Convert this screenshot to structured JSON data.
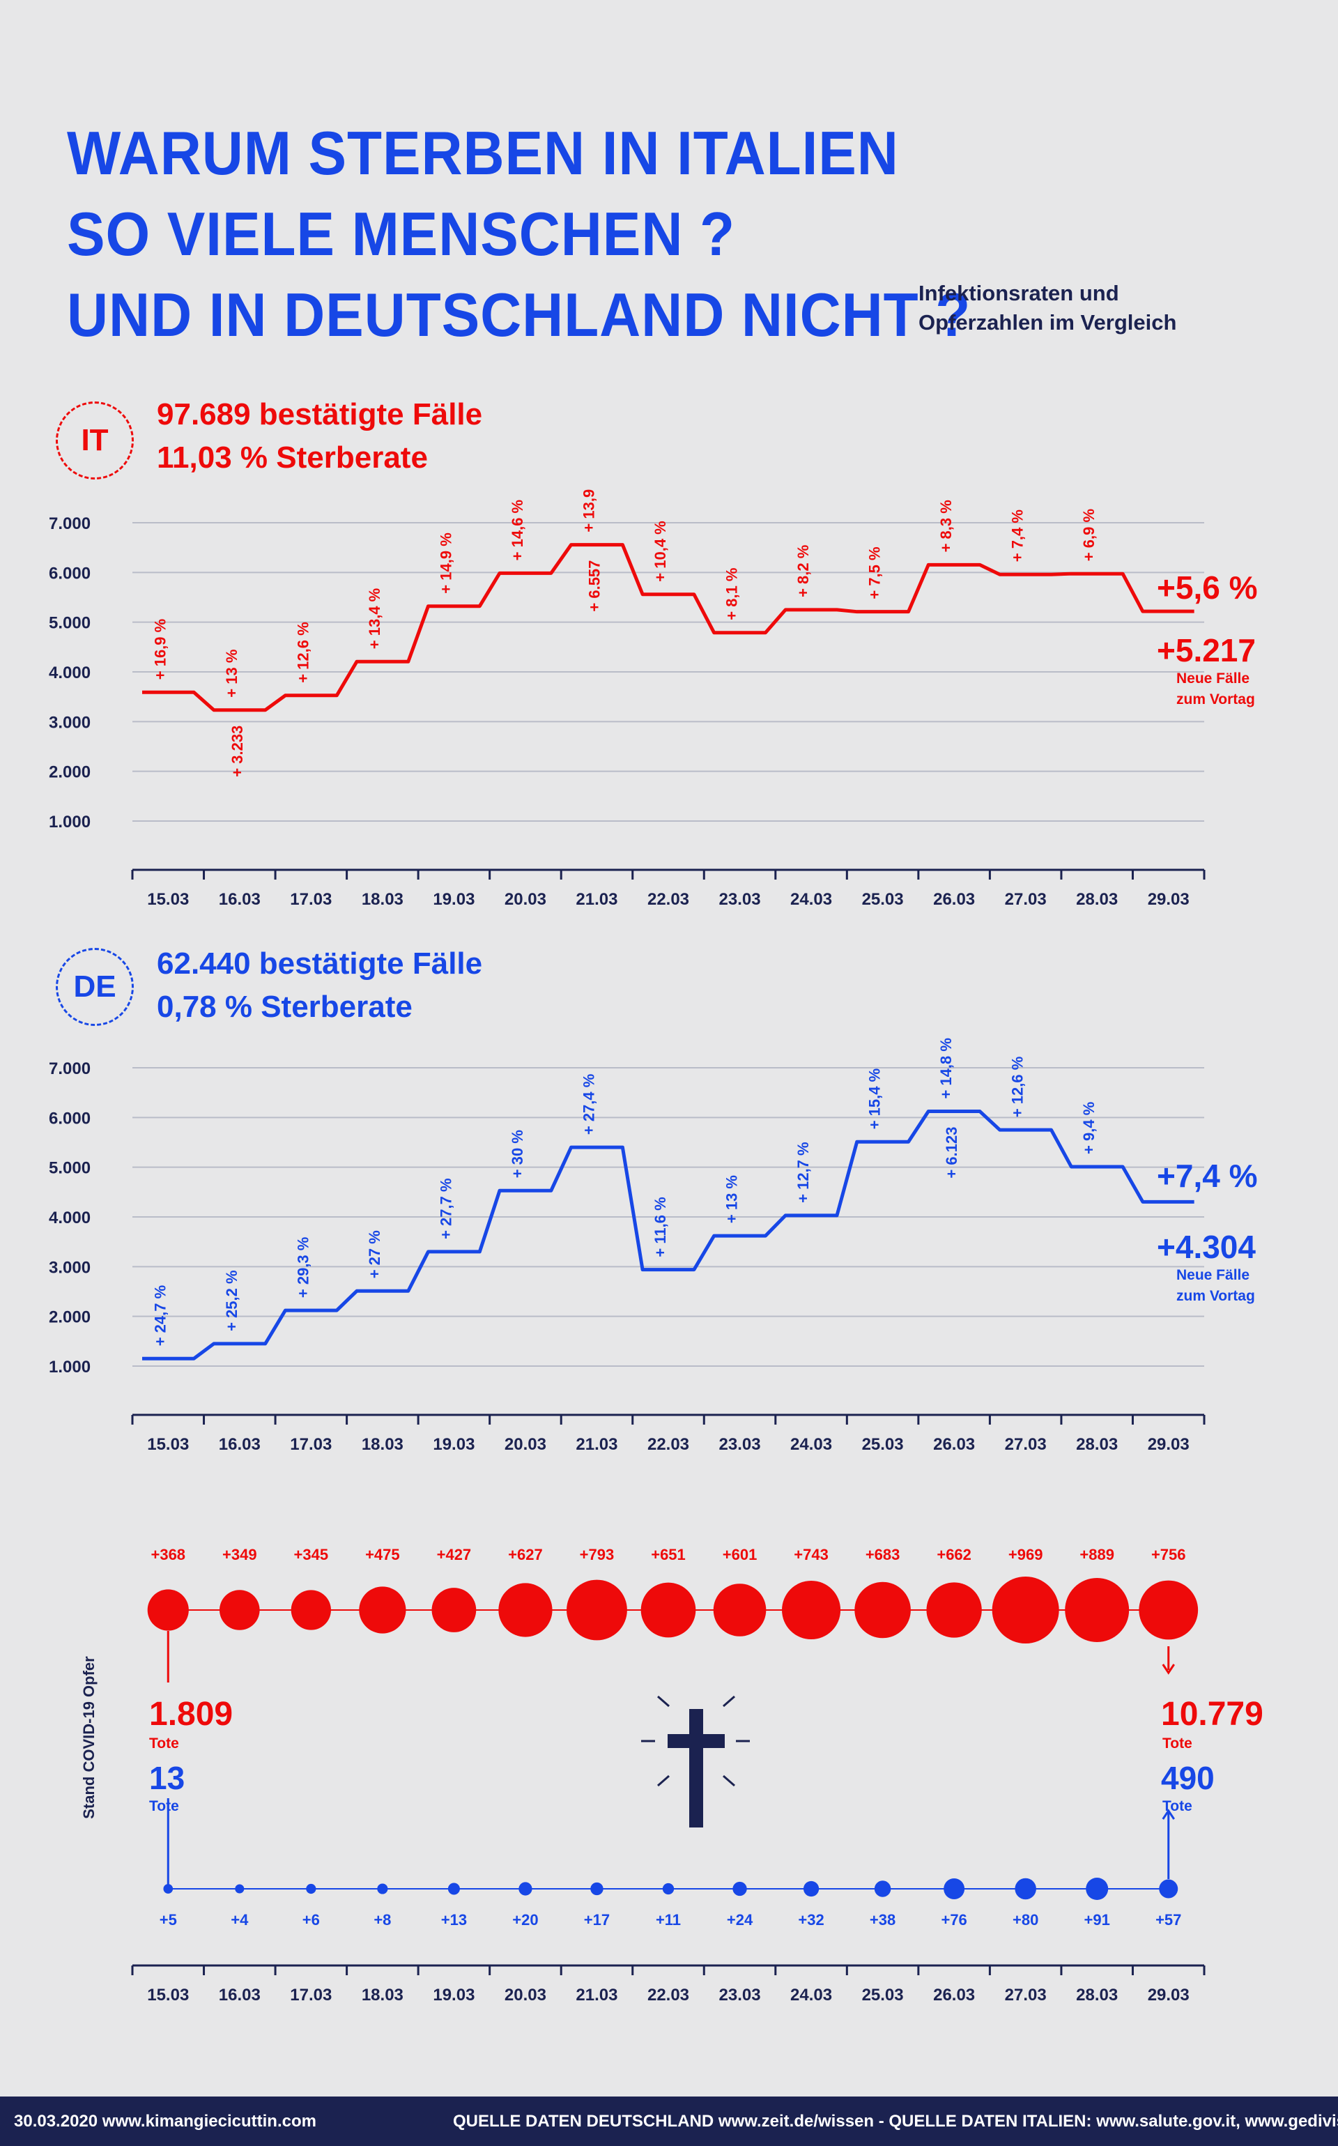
{
  "title": {
    "line1": "WARUM STERBEN IN ITALIEN",
    "line2": "SO VIELE MENSCHEN ?",
    "line3": "UND IN DEUTSCHLAND NICHT ?",
    "subtitle1": "Infektionsraten und",
    "subtitle2": "Opferzahlen im Vergleich"
  },
  "italy": {
    "badge": "IT",
    "cases": "97.689 bestätigte Fälle",
    "rate": "11,03 % Sterberate",
    "last_pct": "+5,6 %",
    "last_new": "+5.217",
    "note1": "Neue Fälle",
    "note2": "zum Vortag"
  },
  "germany": {
    "badge": "DE",
    "cases": "62.440 bestätigte Fälle",
    "rate": "0,78 % Sterberate",
    "last_pct": "+7,4 %",
    "last_new": "+4.304",
    "note1": "Neue Fälle",
    "note2": "zum Vortag"
  },
  "colors": {
    "italy": "#ee0a0a",
    "germany": "#1747e6",
    "navy": "#1b2250",
    "grid": "#b9bcc8"
  },
  "chart_data": [
    {
      "type": "line",
      "title": "97.689 bestätigte Fälle",
      "categories": [
        "15.03",
        "16.03",
        "17.03",
        "18.03",
        "19.03",
        "20.03",
        "21.03",
        "22.03",
        "23.03",
        "24.03",
        "25.03",
        "26.03",
        "27.03",
        "28.03",
        "29.03"
      ],
      "yticks": [
        "7.000",
        "6.000",
        "5.000",
        "4.000",
        "3.000",
        "2.000",
        "1.000"
      ],
      "ylim": [
        0,
        7000
      ],
      "series": [
        {
          "values": [
            3590,
            3233,
            3526,
            4207,
            5322,
            5986,
            6557,
            5560,
            4789,
            5249,
            5210,
            6153,
            5959,
            5974,
            5217
          ],
          "labels": [
            "+ 16,9 %",
            "+ 13 %",
            "+ 12,6 %",
            "+ 13,4 %",
            "+ 14,9 %",
            "+ 14,6 %",
            "+ 13,9 %",
            "+ 10,4 %",
            "+ 8,1 %",
            "+ 8,2 %",
            "+ 7,5 %",
            "+ 8,3 %",
            "+ 7,4 %",
            "+ 6,9 %",
            ""
          ],
          "value_labels": {
            "1": "+ 3.233",
            "6": "+ 6.557"
          }
        }
      ]
    },
    {
      "type": "line",
      "title": "62.440 bestätigte Fälle",
      "categories": [
        "15.03",
        "16.03",
        "17.03",
        "18.03",
        "19.03",
        "20.03",
        "21.03",
        "22.03",
        "23.03",
        "24.03",
        "25.03",
        "26.03",
        "27.03",
        "28.03",
        "29.03"
      ],
      "yticks": [
        "7.000",
        "6.000",
        "5.000",
        "4.000",
        "3.000",
        "2.000",
        "1.000"
      ],
      "ylim": [
        0,
        7000
      ],
      "series": [
        {
          "values": [
            1150,
            1450,
            2120,
            2510,
            3300,
            4530,
            5400,
            2940,
            3620,
            4030,
            5510,
            6123,
            5750,
            5010,
            4304
          ],
          "labels": [
            "+ 24,7 %",
            "+ 25,2 %",
            "+ 29,3 %",
            "+ 27 %",
            "+ 27,7 %",
            "+ 30 %",
            "+ 27,4 %",
            "+ 11,6 %",
            "+ 13 %",
            "+ 12,7 %",
            "+ 15,4 %",
            "+ 14,8 %",
            "+ 12,6 %",
            "+ 9,4 %",
            ""
          ],
          "value_labels": {
            "11": "+ 6.123"
          }
        }
      ]
    },
    {
      "type": "scatter",
      "title": "Stand COVID-19 Opfer",
      "categories": [
        "15.03",
        "16.03",
        "17.03",
        "18.03",
        "19.03",
        "20.03",
        "21.03",
        "22.03",
        "23.03",
        "24.03",
        "25.03",
        "26.03",
        "27.03",
        "28.03",
        "29.03"
      ],
      "series": [
        {
          "name": "Italien",
          "values": [
            368,
            349,
            345,
            475,
            427,
            627,
            793,
            651,
            601,
            743,
            683,
            662,
            969,
            889,
            756
          ],
          "labels": [
            "+368",
            "+349",
            "+345",
            "+475",
            "+427",
            "+627",
            "+793",
            "+651",
            "+601",
            "+743",
            "+683",
            "+662",
            "+969",
            "+889",
            "+756"
          ]
        },
        {
          "name": "Deutschland",
          "values": [
            5,
            4,
            6,
            8,
            13,
            20,
            17,
            11,
            24,
            32,
            38,
            76,
            80,
            91,
            57
          ],
          "labels": [
            "+5",
            "+4",
            "+6",
            "+8",
            "+13",
            "+20",
            "+17",
            "+11",
            "+24",
            "+32",
            "+38",
            "+76",
            "+80",
            "+91",
            "+57"
          ]
        }
      ]
    }
  ],
  "victims": {
    "label": "Stand COVID-19 Opfer",
    "it_start": "1.809",
    "de_start": "13",
    "it_end": "10.779",
    "de_end": "490",
    "unit": "Tote",
    "cross_icon": "cross-icon"
  },
  "footer": {
    "left": "30.03.2020  www.kimangiecicuttin.com",
    "right": "QUELLE DATEN DEUTSCHLAND www.zeit.de/wissen   -   QUELLE DATEN ITALIEN: www.salute.gov.it,  www.gedivisual.it"
  }
}
